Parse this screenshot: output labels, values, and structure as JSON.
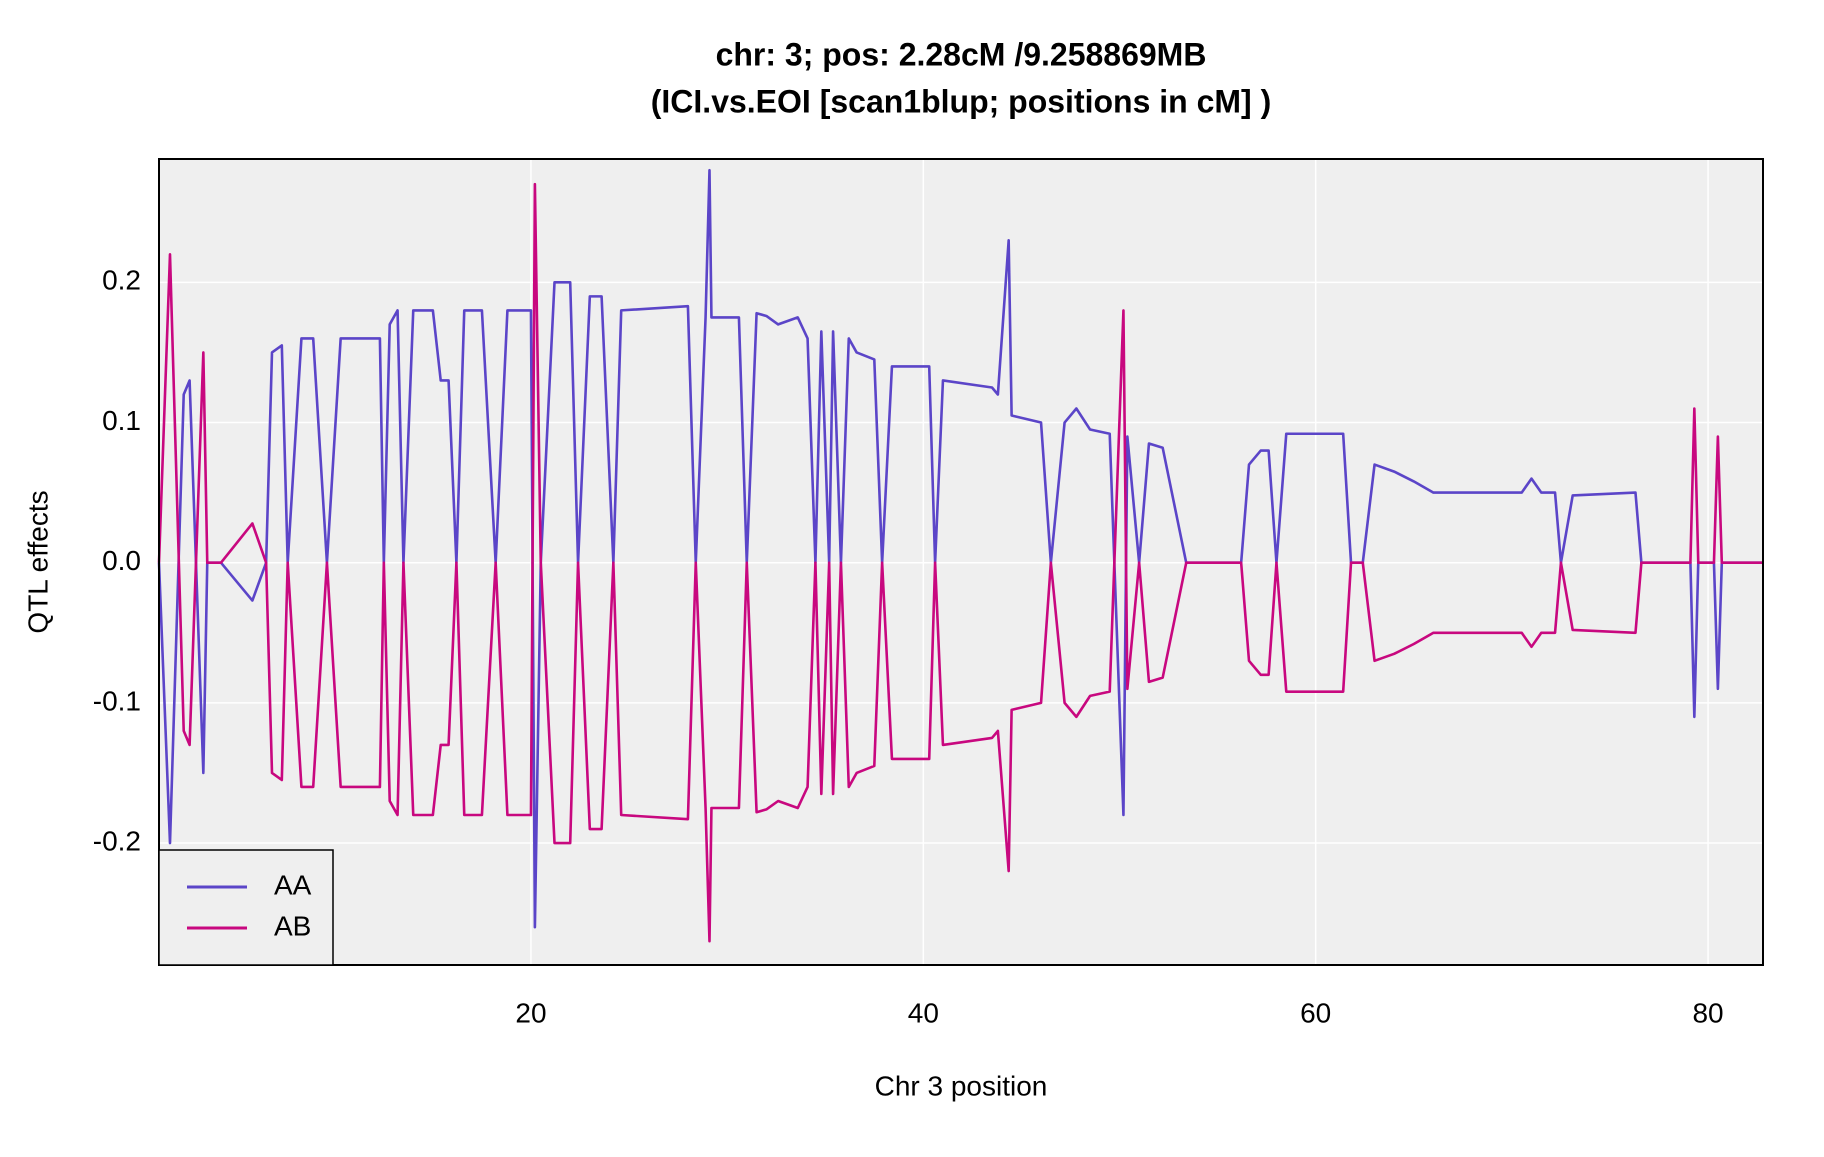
{
  "chart_data": {
    "type": "line",
    "title": "chr: 3; pos: 2.28cM /9.258869MB",
    "subtitle": "(ICI.vs.EOI [scan1blup; positions in cM] )",
    "x_label": "Chr 3 position",
    "y_label": "QTL effects",
    "xlim": [
      1.04,
      82.8
    ],
    "ylim": [
      -0.287,
      0.288
    ],
    "xticks": [
      20,
      40,
      60,
      80
    ],
    "yticks": [
      -0.2,
      -0.1,
      {
        "value": 0,
        "label": "0.0"
      },
      0.1,
      0.2
    ],
    "grid": true,
    "legend": "bottom-left",
    "x": [
      1.04,
      1.6,
      2.3,
      2.6,
      3.3,
      3.5,
      4.2,
      5.8,
      6.5,
      6.8,
      7.3,
      7.6,
      8.3,
      8.9,
      9.6,
      10.3,
      12.3,
      12.5,
      12.8,
      13.2,
      13.5,
      14,
      15,
      15.4,
      15.8,
      16.2,
      16.6,
      17.5,
      18.2,
      18.8,
      20,
      20.2,
      20.5,
      21.2,
      22,
      22.4,
      23,
      23.6,
      24.2,
      24.6,
      28,
      28.4,
      28.9,
      29.1,
      29.2,
      30.6,
      31,
      31.5,
      32,
      32.6,
      33.6,
      34.1,
      34.5,
      34.8,
      35.2,
      35.4,
      35.8,
      36.2,
      36.6,
      37.5,
      37.9,
      38.4,
      40.3,
      40.6,
      41,
      43.5,
      43.8,
      44.35,
      44.5,
      46,
      46.5,
      47.2,
      47.8,
      48.5,
      49.5,
      50.2,
      50.4,
      51,
      51.5,
      52.2,
      53.4,
      56.2,
      56.6,
      57.2,
      57.6,
      58,
      58.5,
      61.4,
      61.8,
      62.4,
      63,
      64,
      65,
      66,
      69,
      70.5,
      71,
      71.5,
      72.2,
      72.5,
      73.1,
      76.3,
      76.6,
      77.3,
      79.1,
      79.3,
      79.5,
      80.3,
      80.5,
      80.7,
      82.8
    ],
    "series": [
      {
        "name": "AA",
        "color": "#5b45c8",
        "values": [
          0,
          -0.2,
          0.12,
          0.13,
          -0.15,
          0,
          0,
          -0.027,
          0,
          0.15,
          0.155,
          0,
          0.16,
          0.16,
          0,
          0.16,
          0.16,
          0,
          0.17,
          0.18,
          0,
          0.18,
          0.18,
          0.13,
          0.13,
          0,
          0.18,
          0.18,
          0,
          0.18,
          0.18,
          -0.26,
          0,
          0.2,
          0.2,
          0,
          0.19,
          0.19,
          0,
          0.18,
          0.183,
          0,
          0.175,
          0.28,
          0.175,
          0.175,
          0,
          0.178,
          0.176,
          0.17,
          0.175,
          0.16,
          0,
          0.165,
          0,
          0.165,
          0,
          0.16,
          0.15,
          0.145,
          0,
          0.14,
          0.14,
          0,
          0.13,
          0.125,
          0.12,
          0.23,
          0.105,
          0.1,
          0,
          0.1,
          0.11,
          0.095,
          0.092,
          -0.18,
          0.09,
          0,
          0.085,
          0.082,
          0,
          0,
          0.07,
          0.08,
          0.08,
          0,
          0.092,
          0.092,
          0,
          0,
          0.07,
          0.065,
          0.058,
          0.05,
          0.05,
          0.05,
          0.06,
          0.05,
          0.05,
          0,
          0.048,
          0.05,
          0,
          0,
          0,
          -0.11,
          0,
          0,
          -0.09,
          0,
          0
        ]
      },
      {
        "name": "AB",
        "color": "#c8087f",
        "values": [
          0,
          0.22,
          -0.12,
          -0.13,
          0.15,
          0,
          0,
          0.028,
          0,
          -0.15,
          -0.155,
          0,
          -0.16,
          -0.16,
          0,
          -0.16,
          -0.16,
          0,
          -0.17,
          -0.18,
          0,
          -0.18,
          -0.18,
          -0.13,
          -0.13,
          0,
          -0.18,
          -0.18,
          0,
          -0.18,
          -0.18,
          0.27,
          0,
          -0.2,
          -0.2,
          0,
          -0.19,
          -0.19,
          0,
          -0.18,
          -0.183,
          0,
          -0.175,
          -0.27,
          -0.175,
          -0.175,
          0,
          -0.178,
          -0.176,
          -0.17,
          -0.175,
          -0.16,
          0,
          -0.165,
          0,
          -0.165,
          0,
          -0.16,
          -0.15,
          -0.145,
          0,
          -0.14,
          -0.14,
          0,
          -0.13,
          -0.125,
          -0.12,
          -0.22,
          -0.105,
          -0.1,
          0,
          -0.1,
          -0.11,
          -0.095,
          -0.092,
          0.18,
          -0.09,
          0,
          -0.085,
          -0.082,
          0,
          0,
          -0.07,
          -0.08,
          -0.08,
          0,
          -0.092,
          -0.092,
          0,
          0,
          -0.07,
          -0.065,
          -0.058,
          -0.05,
          -0.05,
          -0.05,
          -0.06,
          -0.05,
          -0.05,
          0,
          -0.048,
          -0.05,
          0,
          0,
          0,
          0.11,
          0,
          0,
          0.09,
          0,
          0
        ]
      }
    ]
  }
}
